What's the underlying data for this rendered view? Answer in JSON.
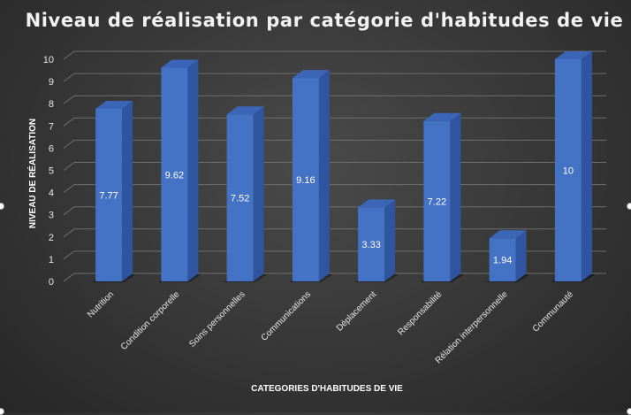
{
  "chart_data": {
    "type": "bar",
    "title": "Niveau de réalisation par catégorie d'habitudes de vie",
    "xlabel": "CATEGORIES D'HABITUDES DE VIE",
    "ylabel": "NIVEAU DE RÉALISATION",
    "categories": [
      "Nutrition",
      "Condition corporelle",
      "Soins personnelles",
      "Communications",
      "Déplacement",
      "Responsabilité",
      "Rélation interpersonnelle",
      "Communauté"
    ],
    "values": [
      7.77,
      9.62,
      7.52,
      9.16,
      3.33,
      7.22,
      1.94,
      10
    ],
    "data_labels": [
      "7.77",
      "9.62",
      "7.52",
      "9.16",
      "3.33",
      "7.22",
      "1.94",
      "10"
    ],
    "ylim": [
      0,
      10
    ],
    "yticks": [
      "0",
      "1",
      "2",
      "3",
      "4",
      "5",
      "6",
      "7",
      "8",
      "9",
      "10"
    ],
    "grid": true,
    "legend": "none",
    "colors": {
      "bar_front": "#4472c4",
      "bar_side": "#2f55a0",
      "bar_top": "#3b66b8",
      "grid": "#6e6e6e",
      "text": "#e8e8e8"
    }
  }
}
